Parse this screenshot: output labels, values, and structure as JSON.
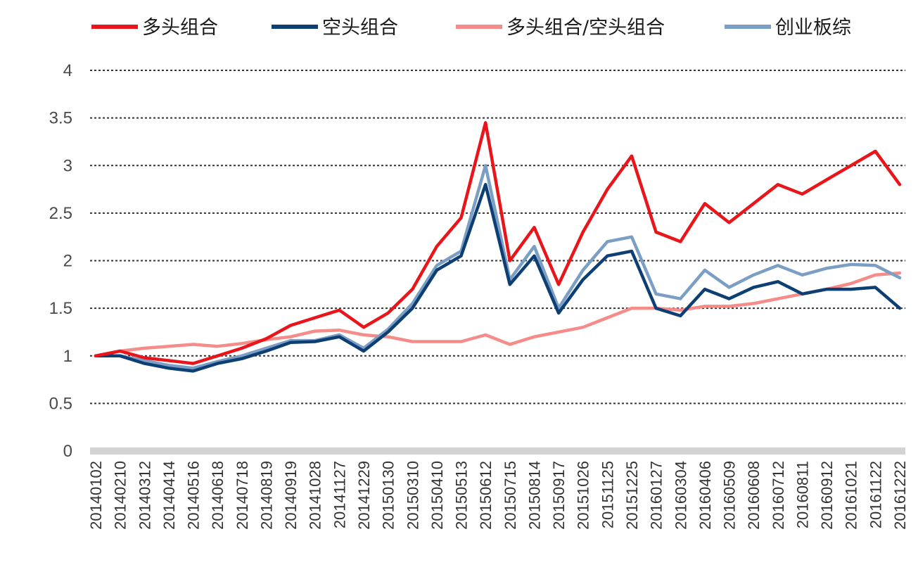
{
  "chart_data": {
    "type": "line",
    "title": "",
    "xlabel": "",
    "ylabel": "",
    "ylim": [
      0,
      4
    ],
    "yticks": [
      "0",
      "0.5",
      "1",
      "1.5",
      "2",
      "2.5",
      "3",
      "3.5",
      "4"
    ],
    "grid": "horizontal dotted",
    "legend": "top",
    "x": [
      "20140102",
      "20140210",
      "20140312",
      "20140414",
      "20140516",
      "20140618",
      "20140718",
      "20140819",
      "20140919",
      "20141028",
      "20141127",
      "20141229",
      "20150130",
      "20150310",
      "20150410",
      "20150513",
      "20150612",
      "20150715",
      "20150814",
      "20150917",
      "20151026",
      "20151125",
      "20151225",
      "20160127",
      "20160304",
      "20160406",
      "20160509",
      "20160608",
      "20160712",
      "20160811",
      "20160912",
      "20161021",
      "20161122",
      "20161222"
    ],
    "series": [
      {
        "name": "多头组合",
        "color": "#e8151b",
        "values": [
          1.0,
          1.05,
          0.98,
          0.95,
          0.92,
          1.0,
          1.08,
          1.18,
          1.32,
          1.4,
          1.48,
          1.3,
          1.45,
          1.7,
          2.15,
          2.45,
          3.45,
          2.0,
          2.35,
          1.75,
          2.3,
          2.75,
          3.1,
          2.3,
          2.2,
          2.6,
          2.4,
          2.6,
          2.8,
          2.7,
          2.85,
          3.0,
          3.15,
          2.8
        ]
      },
      {
        "name": "空头组合",
        "color": "#0d3f74",
        "values": [
          1.0,
          1.0,
          0.92,
          0.87,
          0.84,
          0.92,
          0.97,
          1.05,
          1.14,
          1.15,
          1.2,
          1.05,
          1.25,
          1.5,
          1.9,
          2.05,
          2.8,
          1.75,
          2.05,
          1.45,
          1.8,
          2.05,
          2.1,
          1.5,
          1.42,
          1.7,
          1.6,
          1.72,
          1.78,
          1.65,
          1.7,
          1.7,
          1.72,
          1.5
        ]
      },
      {
        "name": "多头组合/空头组合",
        "color": "#f58c89",
        "values": [
          1.0,
          1.05,
          1.08,
          1.1,
          1.12,
          1.1,
          1.13,
          1.17,
          1.2,
          1.26,
          1.27,
          1.22,
          1.2,
          1.15,
          1.15,
          1.15,
          1.22,
          1.12,
          1.2,
          1.25,
          1.3,
          1.4,
          1.5,
          1.5,
          1.48,
          1.52,
          1.52,
          1.55,
          1.6,
          1.65,
          1.7,
          1.76,
          1.85,
          1.87
        ]
      },
      {
        "name": "创业板综",
        "color": "#7b9fc4",
        "values": [
          1.0,
          1.0,
          0.95,
          0.9,
          0.87,
          0.94,
          1.0,
          1.08,
          1.16,
          1.16,
          1.22,
          1.08,
          1.28,
          1.55,
          1.95,
          2.1,
          3.0,
          1.8,
          2.15,
          1.5,
          1.9,
          2.2,
          2.25,
          1.65,
          1.6,
          1.9,
          1.72,
          1.85,
          1.95,
          1.85,
          1.92,
          1.96,
          1.95,
          1.82
        ]
      }
    ]
  }
}
